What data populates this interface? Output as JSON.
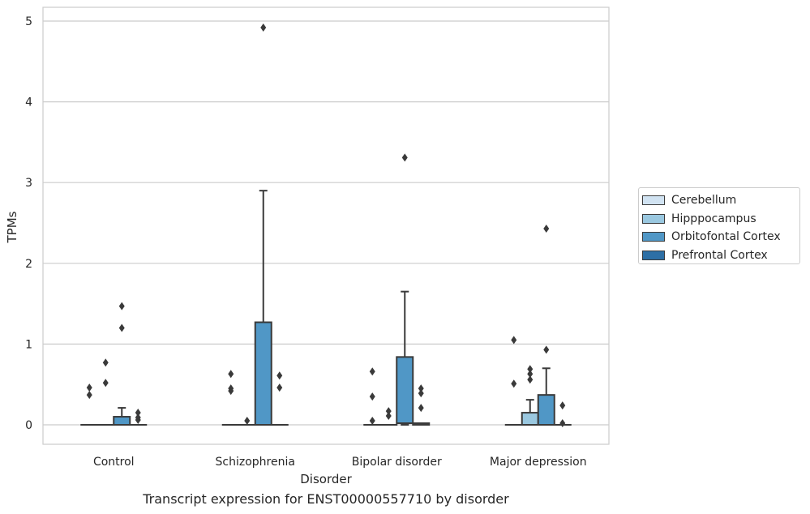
{
  "chart_data": {
    "type": "box",
    "ylabel": "TPMs",
    "xlabel": "Disorder",
    "caption": "Transcript expression for ENST00000557710 by disorder",
    "ylim": [
      -0.24,
      5.18
    ],
    "yticks": [
      0,
      1,
      2,
      3,
      4,
      5
    ],
    "grid": "horizontal",
    "legend_position": "right",
    "categories": [
      "Control",
      "Schizophrenia",
      "Bipolar disorder",
      "Major depression"
    ],
    "series": [
      {
        "name": "Cerebellum",
        "color": "#d1e3f2",
        "boxes": [
          {
            "q1": 0,
            "median": 0,
            "q3": 0,
            "whislo": 0,
            "whishi": 0,
            "fliers": [
              0.37,
              0.46
            ]
          },
          {
            "q1": 0,
            "median": 0,
            "q3": 0,
            "whislo": 0,
            "whishi": 0,
            "fliers": [
              0.42,
              0.45,
              0.63
            ]
          },
          {
            "q1": 0,
            "median": 0,
            "q3": 0,
            "whislo": 0,
            "whishi": 0,
            "fliers": [
              0.05,
              0.35,
              0.66
            ]
          },
          {
            "q1": 0,
            "median": 0,
            "q3": 0,
            "whislo": 0,
            "whishi": 0,
            "fliers": [
              0.51,
              1.05
            ]
          }
        ]
      },
      {
        "name": "Hipppocampus",
        "color": "#9ac8e0",
        "boxes": [
          {
            "q1": 0,
            "median": 0,
            "q3": 0,
            "whislo": 0,
            "whishi": 0,
            "fliers": [
              0.52,
              0.77
            ]
          },
          {
            "q1": 0,
            "median": 0,
            "q3": 0,
            "whislo": 0,
            "whishi": 0,
            "fliers": [
              0.05
            ]
          },
          {
            "q1": 0,
            "median": 0,
            "q3": 0,
            "whislo": 0,
            "whishi": 0,
            "fliers": [
              0.11,
              0.17
            ]
          },
          {
            "q1": 0,
            "median": 0,
            "q3": 0.15,
            "whislo": 0,
            "whishi": 0.31,
            "fliers": [
              0.56,
              0.63,
              0.69
            ]
          }
        ]
      },
      {
        "name": "Orbitofontal Cortex",
        "color": "#5097c6",
        "boxes": [
          {
            "q1": 0,
            "median": 0,
            "q3": 0.1,
            "whislo": 0,
            "whishi": 0.21,
            "fliers": [
              1.2,
              1.47
            ]
          },
          {
            "q1": 0,
            "median": 0,
            "q3": 1.27,
            "whislo": 0,
            "whishi": 2.9,
            "fliers": [
              4.92
            ]
          },
          {
            "q1": 0.02,
            "median": 0.02,
            "q3": 0.84,
            "whislo": 0,
            "whishi": 1.65,
            "fliers": [
              3.31
            ]
          },
          {
            "q1": 0,
            "median": 0,
            "q3": 0.37,
            "whislo": 0,
            "whishi": 0.7,
            "fliers": [
              0.93,
              2.43
            ]
          }
        ]
      },
      {
        "name": "Prefrontal Cortex",
        "color": "#2d6fa5",
        "boxes": [
          {
            "q1": 0,
            "median": 0,
            "q3": 0,
            "whislo": 0,
            "whishi": 0,
            "fliers": [
              0.06,
              0.09,
              0.15
            ]
          },
          {
            "q1": 0,
            "median": 0,
            "q3": 0,
            "whislo": 0,
            "whishi": 0,
            "fliers": [
              0.46,
              0.61
            ]
          },
          {
            "q1": 0,
            "median": 0,
            "q3": 0.02,
            "whislo": 0,
            "whishi": 0.02,
            "fliers": [
              0.21,
              0.39,
              0.45
            ]
          },
          {
            "q1": 0,
            "median": 0,
            "q3": 0,
            "whislo": 0,
            "whishi": 0,
            "fliers": [
              0.02,
              0.24
            ]
          }
        ]
      }
    ]
  }
}
